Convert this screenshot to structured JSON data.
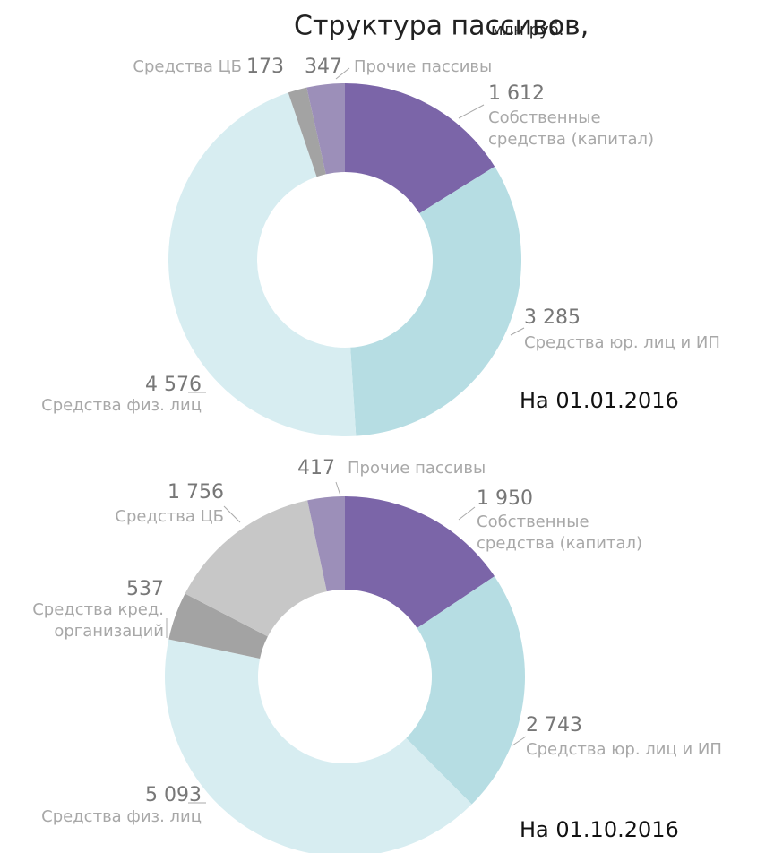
{
  "title": "Структура пассивов,",
  "subtitle": "млн руб.",
  "chart_data": [
    {
      "type": "pie",
      "donut": true,
      "caption": "На 01.01.2016",
      "categories": [
        "Собственные\nсредства (капитал)",
        "Средства юр. лиц и ИП",
        "Средства физ. лиц",
        "Средства ЦБ",
        "Прочие пассивы"
      ],
      "values": [
        1612,
        3285,
        4576,
        173,
        347
      ],
      "value_labels": [
        "1 612",
        "3 285",
        "4 576",
        "173",
        "347"
      ],
      "colors": [
        "#7b65a8",
        "#b6dde3",
        "#d7edf1",
        "#a3a3a3",
        "#9c8fb9"
      ]
    },
    {
      "type": "pie",
      "donut": true,
      "caption": "На 01.10.2016",
      "categories": [
        "Собственные\nсредства (капитал)",
        "Средства юр. лиц и ИП",
        "Средства физ. лиц",
        "Средства кред.\nорганизаций",
        "Средства ЦБ",
        "Прочие пассивы"
      ],
      "values": [
        1950,
        2743,
        5093,
        537,
        1756,
        417
      ],
      "value_labels": [
        "1 950",
        "2 743",
        "5 093",
        "537",
        "1 756",
        "417"
      ],
      "colors": [
        "#7b65a8",
        "#b6dde3",
        "#d7edf1",
        "#a3a3a3",
        "#c7c7c7",
        "#9c8fb9"
      ]
    }
  ]
}
